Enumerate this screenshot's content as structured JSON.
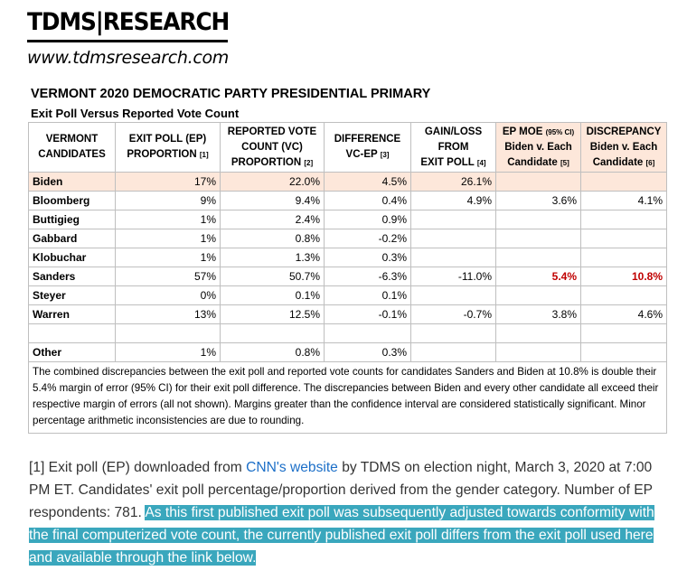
{
  "header": {
    "logo": "TDMS|RESEARCH",
    "url": "www.tdmsresearch.com",
    "title": "VERMONT 2020 DEMOCRATIC PARTY PRESIDENTIAL PRIMARY",
    "subtitle": "Exit Poll Versus Reported Vote Count"
  },
  "table": {
    "headers": [
      {
        "line1": "VERMONT",
        "line2": "CANDIDATES",
        "line3": "",
        "note": ""
      },
      {
        "line1": "EXIT POLL (EP)",
        "line2": "PROPORTION",
        "line3": "",
        "note": "[1]"
      },
      {
        "line1": "REPORTED VOTE",
        "line2": "COUNT (VC)",
        "line3": "PROPORTION",
        "note": "[2]"
      },
      {
        "line1": "DIFFERENCE",
        "line2": "VC-EP",
        "line3": "",
        "note": "[3]"
      },
      {
        "line1": "GAIN/LOSS",
        "line2": "FROM",
        "line3": "EXIT POLL",
        "note": "[4]"
      },
      {
        "line1": "EP MOE",
        "line1_small": "(95% CI)",
        "line2": "Biden v. Each",
        "line3": "Candidate",
        "note": "[5]"
      },
      {
        "line1": "DISCREPANCY",
        "line2": "Biden v. Each",
        "line3": "Candidate",
        "note": "[6]"
      }
    ],
    "rows": [
      {
        "name": "Biden",
        "ep": "17%",
        "vc": "22.0%",
        "diff": "4.5%",
        "gain": "26.1%",
        "moe": "",
        "disc": ""
      },
      {
        "name": "Bloomberg",
        "ep": "9%",
        "vc": "9.4%",
        "diff": "0.4%",
        "gain": "4.9%",
        "moe": "3.6%",
        "disc": "4.1%"
      },
      {
        "name": "Buttigieg",
        "ep": "1%",
        "vc": "2.4%",
        "diff": "0.9%",
        "gain": "",
        "moe": "",
        "disc": ""
      },
      {
        "name": "Gabbard",
        "ep": "1%",
        "vc": "0.8%",
        "diff": "-0.2%",
        "gain": "",
        "moe": "",
        "disc": ""
      },
      {
        "name": "Klobuchar",
        "ep": "1%",
        "vc": "1.3%",
        "diff": "0.3%",
        "gain": "",
        "moe": "",
        "disc": ""
      },
      {
        "name": "Sanders",
        "ep": "57%",
        "vc": "50.7%",
        "diff": "-6.3%",
        "gain": "-11.0%",
        "moe": "5.4%",
        "disc": "10.8%"
      },
      {
        "name": "Steyer",
        "ep": "0%",
        "vc": "0.1%",
        "diff": "0.1%",
        "gain": "",
        "moe": "",
        "disc": ""
      },
      {
        "name": "Warren",
        "ep": "13%",
        "vc": "12.5%",
        "diff": "-0.1%",
        "gain": "-0.7%",
        "moe": "3.8%",
        "disc": "4.6%"
      },
      {
        "name": "",
        "ep": "",
        "vc": "",
        "diff": "",
        "gain": "",
        "moe": "",
        "disc": ""
      },
      {
        "name": "Other",
        "ep": "1%",
        "vc": "0.8%",
        "diff": "0.3%",
        "gain": "",
        "moe": "",
        "disc": ""
      }
    ],
    "note": "The combined discrepancies between the exit poll and reported vote counts for candidates Sanders and Biden at 10.8% is double their 5.4% margin of error (95% CI) for their exit poll difference. The discrepancies between Biden and every other candidate all exceed their respective margin of errors (all not shown). Margins greater than the confidence interval are considered statistically significant. Minor percentage arithmetic inconsistencies are due to rounding."
  },
  "footnote": {
    "prefix": "[1] Exit poll (EP) downloaded from ",
    "link": "CNN's website",
    "middle": " by TDMS on election night, March 3, 2020 at 7:00 PM ET. Candidates' exit poll percentage/proportion derived from the gender category. Number of EP respondents: 781. ",
    "highlighted": "As this first published exit poll was subsequently adjusted towards conformity with the final computerized vote count, the currently published exit poll differs from the exit poll used here and available through the link below."
  }
}
